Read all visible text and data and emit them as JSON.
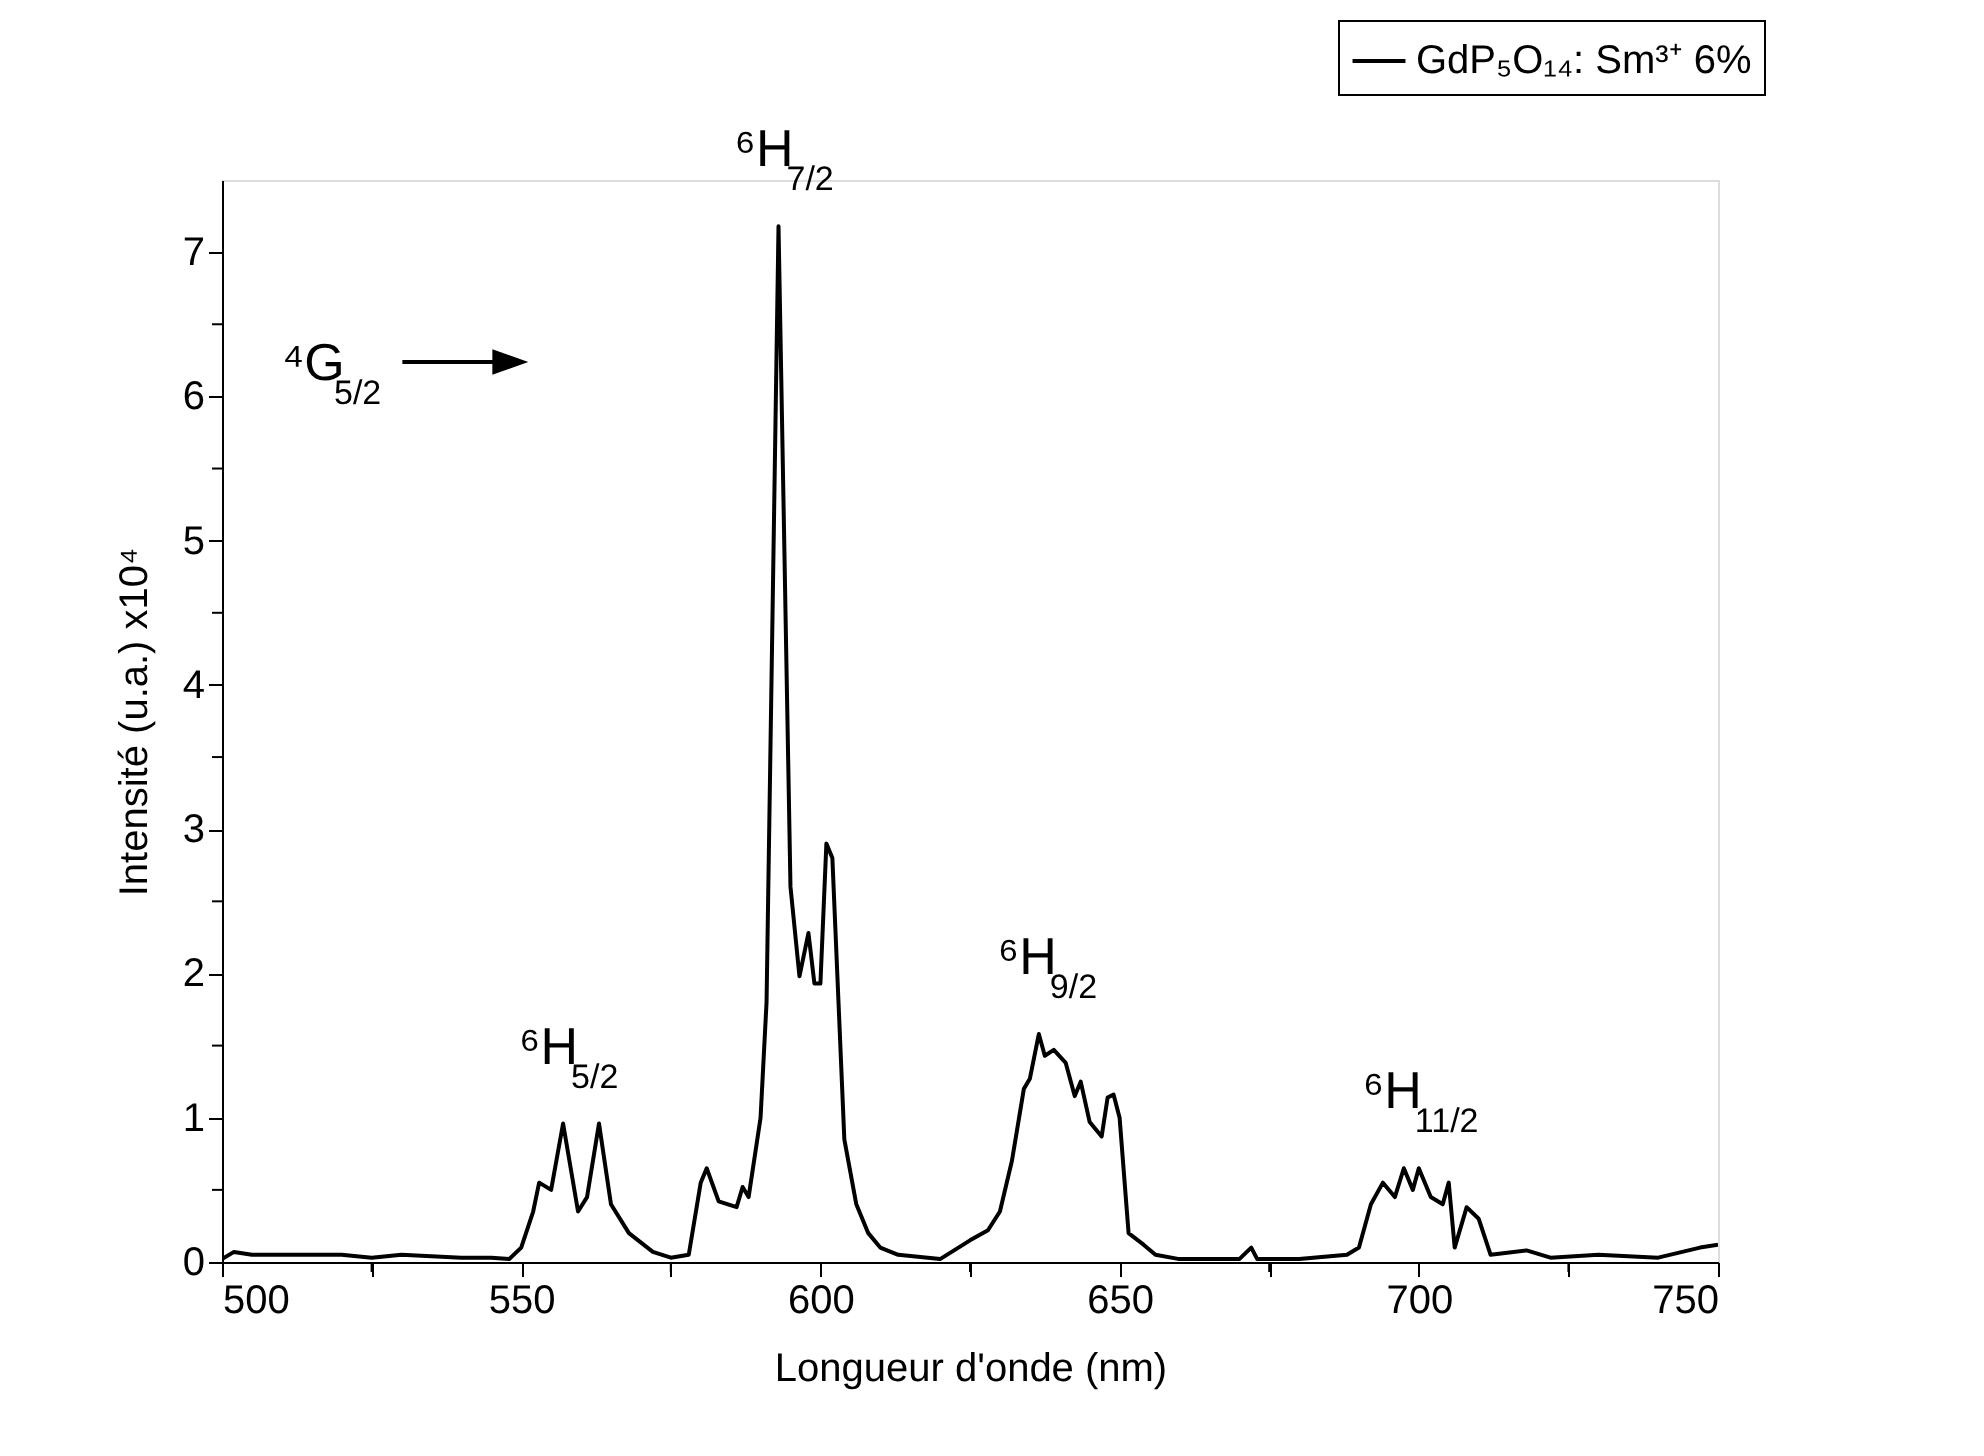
{
  "chart_data": {
    "type": "line",
    "xlabel": "Longueur d'onde (nm)",
    "ylabel": "Intensité (u.a.) x10⁴",
    "xlim": [
      500,
      750
    ],
    "ylim": [
      0,
      7.5
    ],
    "xticks": [
      500,
      {
        "value": 525,
        "label": null
      },
      550,
      {
        "value": 575,
        "label": null
      },
      600,
      {
        "value": 625,
        "label": null
      },
      650,
      {
        "value": 675,
        "label": null
      },
      700,
      {
        "value": 725,
        "label": null
      },
      750
    ],
    "yticks": [
      0,
      {
        "value": 0.5,
        "label": null
      },
      1,
      {
        "value": 1.5,
        "label": null
      },
      2,
      {
        "value": 2.5,
        "label": null
      },
      3,
      {
        "value": 3.5,
        "label": null
      },
      4,
      {
        "value": 4.5,
        "label": null
      },
      5,
      {
        "value": 5.5,
        "label": null
      },
      6,
      {
        "value": 6.5,
        "label": null
      },
      7
    ],
    "grid": false,
    "legend": "top right",
    "marker": "none",
    "line_style": "solid",
    "series": [
      {
        "name": "GdP₅O₁₄: Sm³⁺ 6%",
        "color": "#000000",
        "x": [
          500,
          502,
          505,
          510,
          515,
          520,
          525,
          530,
          535,
          540,
          545,
          548,
          550,
          552,
          553,
          555,
          557,
          559.5,
          561,
          563,
          565,
          568,
          572,
          575,
          578,
          580,
          581,
          583,
          586,
          587,
          588,
          590,
          591,
          593,
          595,
          596.5,
          598,
          599,
          600,
          601,
          602,
          604,
          606,
          608,
          610,
          613,
          620,
          625,
          628,
          630,
          632,
          634,
          635,
          636.5,
          637.5,
          639,
          641,
          642.5,
          643.5,
          645,
          647,
          648,
          649,
          650,
          651.5,
          654,
          656,
          660,
          670,
          672,
          673,
          680,
          688,
          690,
          692,
          694,
          696,
          697.5,
          699,
          700,
          702,
          704,
          705,
          706,
          708,
          710,
          712,
          718,
          722,
          730,
          740,
          747,
          750
        ],
        "values": [
          0.02,
          0.07,
          0.05,
          0.05,
          0.05,
          0.05,
          0.03,
          0.05,
          0.04,
          0.03,
          0.03,
          0.02,
          0.1,
          0.35,
          0.55,
          0.5,
          0.96,
          0.35,
          0.45,
          0.96,
          0.4,
          0.2,
          0.07,
          0.03,
          0.05,
          0.55,
          0.65,
          0.42,
          0.38,
          0.52,
          0.45,
          1.0,
          1.8,
          7.18,
          2.6,
          1.98,
          2.28,
          1.93,
          1.93,
          2.9,
          2.8,
          0.85,
          0.4,
          0.2,
          0.1,
          0.05,
          0.02,
          0.15,
          0.22,
          0.35,
          0.7,
          1.2,
          1.27,
          1.58,
          1.43,
          1.47,
          1.38,
          1.15,
          1.25,
          0.97,
          0.87,
          1.14,
          1.16,
          1.0,
          0.2,
          0.12,
          0.05,
          0.02,
          0.02,
          0.1,
          0.02,
          0.02,
          0.05,
          0.1,
          0.4,
          0.55,
          0.45,
          0.65,
          0.5,
          0.65,
          0.45,
          0.4,
          0.55,
          0.1,
          0.38,
          0.3,
          0.05,
          0.08,
          0.03,
          0.05,
          0.03,
          0.1,
          0.12
        ]
      }
    ],
    "annotations": [
      {
        "text": "⁶H$_{5/2}$",
        "x": 557,
        "y": 0.96
      },
      {
        "text": "⁶H$_{7/2}$",
        "x": 593,
        "y": 7.18
      },
      {
        "text": "⁶H$_{9/2}$",
        "x": 637,
        "y": 1.58
      },
      {
        "text": "⁶H$_{11/2}$",
        "x": 698,
        "y": 0.65
      },
      "⁴G$_{5/2}$"
    ]
  }
}
